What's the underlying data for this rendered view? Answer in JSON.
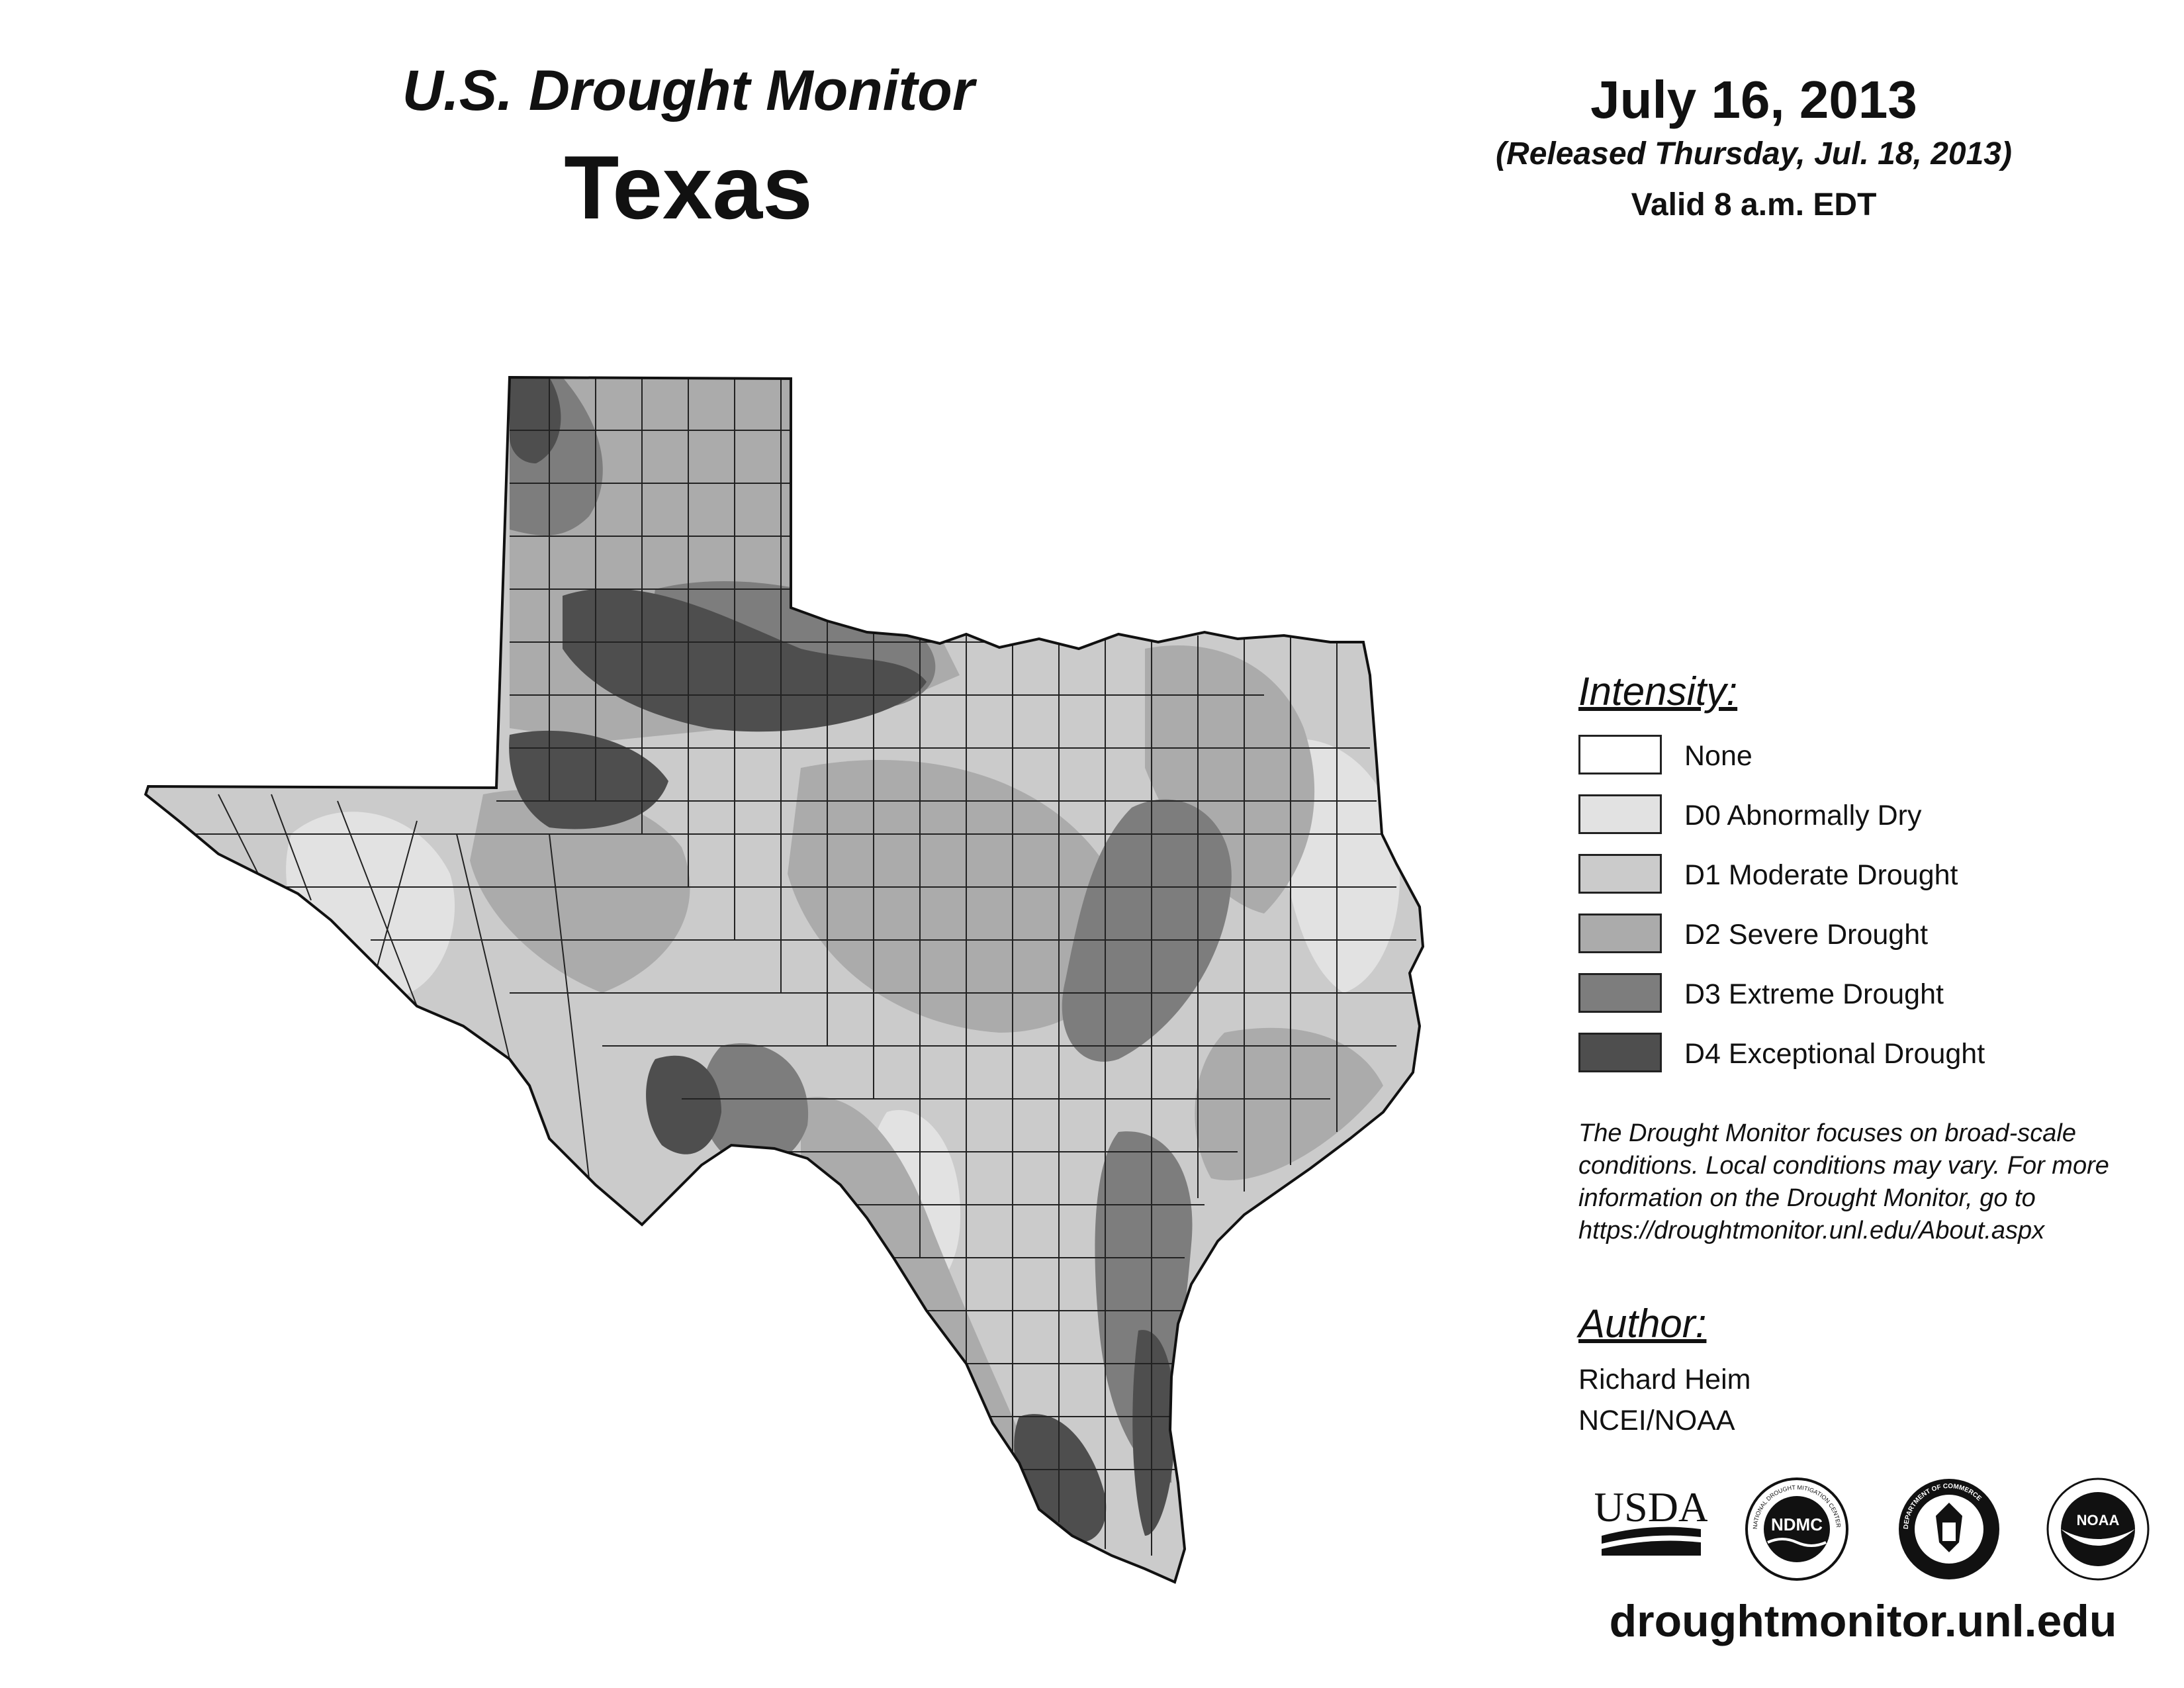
{
  "header": {
    "title": "U.S. Drought Monitor",
    "state": "Texas",
    "date": "July 16, 2013",
    "released": "(Released Thursday, Jul. 18, 2013)",
    "valid": "Valid 8 a.m. EDT"
  },
  "legend": {
    "title": "Intensity:",
    "items": [
      {
        "label": "None",
        "color": "#ffffff"
      },
      {
        "label": "D0 Abnormally Dry",
        "color": "#e2e2e2"
      },
      {
        "label": "D1 Moderate Drought",
        "color": "#cbcbcb"
      },
      {
        "label": "D2 Severe Drought",
        "color": "#ababab"
      },
      {
        "label": "D3 Extreme Drought",
        "color": "#7d7d7d"
      },
      {
        "label": "D4 Exceptional Drought",
        "color": "#4e4e4e"
      }
    ]
  },
  "note": {
    "lines": [
      "The Drought Monitor focuses on broad-scale",
      "conditions. Local conditions may vary. For more",
      "information on the Drought Monitor, go to",
      "https://droughtmonitor.unl.edu/About.aspx"
    ]
  },
  "author": {
    "title": "Author:",
    "name": "Richard Heim",
    "org": "NCEI/NOAA"
  },
  "logos": {
    "usda": "USDA",
    "ndmc": "NDMC",
    "ndmc_ring": "NATIONAL DROUGHT MITIGATION CENTER",
    "commerce_ring": "DEPARTMENT OF COMMERCE",
    "noaa": "NOAA"
  },
  "footer": {
    "site": "droughtmonitor.unl.edu"
  }
}
